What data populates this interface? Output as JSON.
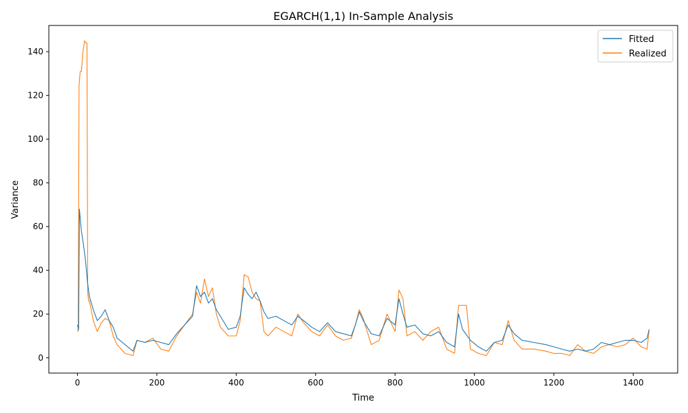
{
  "chart_data": {
    "type": "line",
    "title": "EGARCH(1,1) In-Sample Analysis",
    "xlabel": "Time",
    "ylabel": "Variance",
    "xlim": [
      -72,
      1512
    ],
    "ylim": [
      -7,
      152
    ],
    "x_ticks": [
      0,
      200,
      400,
      600,
      800,
      1000,
      1200,
      1400
    ],
    "y_ticks": [
      0,
      20,
      40,
      60,
      80,
      100,
      120,
      140
    ],
    "grid": false,
    "legend_position": "top-right",
    "series": [
      {
        "name": "Fitted",
        "color": "#1f77b4",
        "x": [
          0,
          3,
          5,
          10,
          15,
          20,
          25,
          30,
          40,
          50,
          60,
          70,
          80,
          90,
          100,
          120,
          140,
          150,
          170,
          190,
          210,
          230,
          250,
          270,
          290,
          300,
          310,
          320,
          330,
          340,
          350,
          360,
          380,
          400,
          410,
          420,
          430,
          440,
          450,
          460,
          470,
          480,
          500,
          520,
          540,
          555,
          570,
          590,
          610,
          630,
          650,
          670,
          690,
          700,
          710,
          720,
          740,
          760,
          780,
          800,
          810,
          820,
          830,
          850,
          870,
          890,
          910,
          930,
          950,
          960,
          970,
          990,
          1010,
          1030,
          1050,
          1070,
          1085,
          1100,
          1120,
          1150,
          1180,
          1200,
          1220,
          1240,
          1260,
          1280,
          1300,
          1320,
          1340,
          1360,
          1380,
          1400,
          1420,
          1435,
          1440
        ],
        "y": [
          15,
          13,
          68,
          58,
          52,
          45,
          35,
          28,
          22,
          17,
          19,
          22,
          17,
          14,
          9,
          6,
          3,
          8,
          7,
          8,
          7,
          6,
          11,
          15,
          19,
          33,
          28,
          30,
          25,
          27,
          22,
          19,
          13,
          14,
          19,
          32,
          29,
          27,
          30,
          26,
          21,
          18,
          19,
          17,
          15,
          19,
          17,
          14,
          12,
          16,
          12,
          11,
          10,
          15,
          21,
          17,
          11,
          10,
          18,
          15,
          27,
          20,
          14,
          15,
          11,
          10,
          12,
          7,
          5,
          20,
          13,
          8,
          5,
          3,
          7,
          8,
          15,
          11,
          8,
          7,
          6,
          5,
          4,
          3,
          4,
          3,
          4,
          7,
          6,
          7,
          8,
          8,
          7,
          9,
          13
        ]
      },
      {
        "name": "Realized",
        "color": "#ff7f0e",
        "x": [
          0,
          2,
          4,
          7,
          10,
          14,
          18,
          21,
          24,
          26,
          28,
          30,
          40,
          50,
          60,
          70,
          80,
          90,
          100,
          120,
          140,
          150,
          170,
          190,
          210,
          230,
          250,
          270,
          290,
          300,
          310,
          320,
          330,
          340,
          350,
          360,
          380,
          400,
          410,
          420,
          430,
          440,
          450,
          460,
          470,
          480,
          500,
          520,
          540,
          555,
          570,
          590,
          610,
          630,
          650,
          670,
          690,
          700,
          710,
          720,
          740,
          760,
          780,
          800,
          810,
          820,
          830,
          850,
          870,
          890,
          910,
          930,
          950,
          960,
          970,
          980,
          990,
          1010,
          1030,
          1050,
          1070,
          1085,
          1100,
          1120,
          1150,
          1180,
          1200,
          1220,
          1240,
          1260,
          1280,
          1300,
          1320,
          1340,
          1360,
          1380,
          1400,
          1420,
          1435,
          1440
        ],
        "y": [
          13,
          12,
          125,
          131,
          131,
          140,
          145,
          144,
          144,
          30,
          26,
          26,
          17,
          12,
          16,
          18,
          17,
          10,
          6,
          2,
          1,
          8,
          7,
          9,
          4,
          3,
          10,
          15,
          20,
          30,
          25,
          36,
          28,
          32,
          20,
          14,
          10,
          10,
          17,
          38,
          37,
          30,
          27,
          26,
          12,
          10,
          14,
          12,
          10,
          20,
          16,
          12,
          10,
          15,
          10,
          8,
          9,
          15,
          22,
          18,
          6,
          8,
          20,
          12,
          31,
          27,
          10,
          12,
          8,
          12,
          14,
          4,
          2,
          24,
          24,
          24,
          4,
          2,
          1,
          7,
          6,
          17,
          8,
          4,
          4,
          3,
          2,
          2,
          1,
          6,
          3,
          2,
          5,
          6,
          5,
          6,
          9,
          5,
          4,
          13
        ]
      }
    ]
  }
}
